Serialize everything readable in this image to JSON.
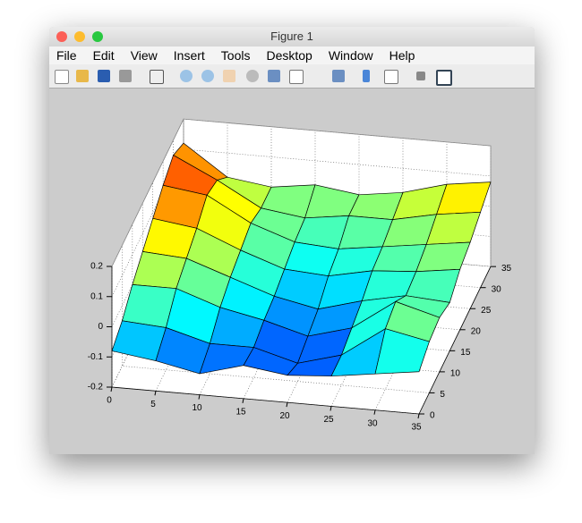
{
  "window": {
    "title": "Figure 1",
    "menu": [
      "File",
      "Edit",
      "View",
      "Insert",
      "Tools",
      "Desktop",
      "Window",
      "Help"
    ]
  },
  "chart_data": {
    "type": "surface",
    "x": [
      0,
      5,
      10,
      15,
      20,
      25,
      30,
      35
    ],
    "y": [
      0,
      5,
      10,
      15,
      20,
      25,
      30,
      35
    ],
    "z": [
      [
        -0.08,
        -0.1,
        -0.13,
        -0.09,
        -0.11,
        -0.1,
        -0.08,
        -0.06
      ],
      [
        -0.05,
        -0.06,
        -0.1,
        -0.1,
        -0.14,
        -0.1,
        0.0,
        -0.03
      ],
      [
        0.0,
        0.0,
        -0.05,
        -0.08,
        -0.12,
        -0.08,
        0.02,
        -0.02
      ],
      [
        0.04,
        0.03,
        -0.02,
        -0.07,
        -0.1,
        -0.06,
        -0.03,
        -0.04
      ],
      [
        0.08,
        0.06,
        0.0,
        -0.05,
        -0.06,
        -0.03,
        -0.02,
        0.0
      ],
      [
        0.12,
        0.1,
        0.02,
        -0.03,
        -0.04,
        -0.02,
        0.0,
        0.02
      ],
      [
        0.15,
        0.08,
        0.0,
        -0.02,
        0.0,
        0.0,
        0.03,
        0.05
      ],
      [
        0.12,
        0.02,
        0.0,
        0.02,
        0.0,
        0.02,
        0.06,
        0.08
      ]
    ],
    "xlim": [
      0,
      35
    ],
    "ylim": [
      0,
      35
    ],
    "zlim": [
      -0.2,
      0.2
    ],
    "xticks": [
      0,
      5,
      10,
      15,
      20,
      25,
      30,
      35
    ],
    "yticks": [
      0,
      5,
      10,
      15,
      20,
      25,
      30,
      35
    ],
    "zticks": [
      -0.2,
      -0.1,
      0,
      0.1,
      0.2
    ],
    "grid": true,
    "colormap": "jet",
    "edge_color": "#000000"
  }
}
